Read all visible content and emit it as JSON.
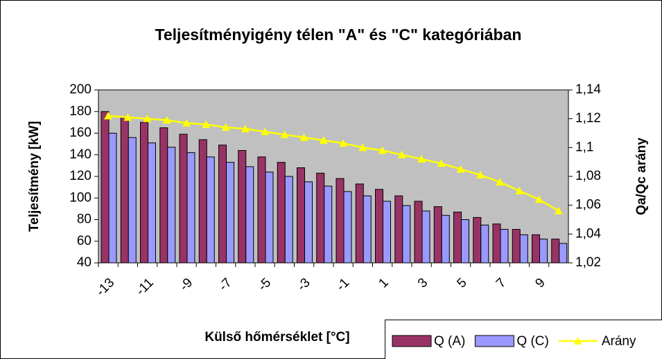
{
  "chart_data": {
    "type": "bar_line",
    "title": "Teljesítményigény télen \"A\" és \"C\" kategóriában",
    "x_label": "Külső hőmérséklet [°C]",
    "y_label": "Teljesítmény [kW]",
    "y2_label": "Qa/Qc arány",
    "categories": [
      "-13",
      null,
      "-11",
      null,
      "-9",
      null,
      "-7",
      null,
      "-5",
      null,
      "-3",
      null,
      "-1",
      null,
      "1",
      null,
      "3",
      null,
      "5",
      null,
      "7",
      null,
      "9",
      null
    ],
    "series": [
      {
        "name": "Q (A)",
        "type": "bar",
        "color": "#993366",
        "values": [
          180,
          175,
          170,
          165,
          159,
          154,
          149,
          144,
          138,
          133,
          128,
          123,
          118,
          113,
          108,
          102,
          97,
          92,
          87,
          82,
          76,
          71,
          66,
          62
        ]
      },
      {
        "name": "Q (C)",
        "type": "bar",
        "color": "#9999ff",
        "values": [
          160,
          156,
          151,
          147,
          142,
          138,
          133,
          129,
          124,
          120,
          115,
          111,
          106,
          102,
          97,
          93,
          88,
          84,
          80,
          75,
          71,
          66,
          62,
          58
        ]
      },
      {
        "name": "Arány",
        "type": "line",
        "axis": "y2",
        "color": "#ffff00",
        "values": [
          1.122,
          1.121,
          1.12,
          1.119,
          1.117,
          1.116,
          1.114,
          1.113,
          1.111,
          1.109,
          1.107,
          1.105,
          1.103,
          1.1,
          1.098,
          1.095,
          1.092,
          1.089,
          1.085,
          1.081,
          1.076,
          1.07,
          1.064,
          1.056
        ]
      }
    ],
    "ylim": [
      40,
      200
    ],
    "yticks": [
      40,
      60,
      80,
      100,
      120,
      140,
      160,
      180,
      200
    ],
    "y2lim": [
      1.02,
      1.14
    ],
    "y2ticks": [
      {
        "value": 1.02,
        "label": "1,02"
      },
      {
        "value": 1.04,
        "label": "1,04"
      },
      {
        "value": 1.06,
        "label": "1,06"
      },
      {
        "value": 1.08,
        "label": "1,08"
      },
      {
        "value": 1.1,
        "label": "1,1"
      },
      {
        "value": 1.12,
        "label": "1,12"
      },
      {
        "value": 1.14,
        "label": "1,14"
      }
    ],
    "plot_background": "#c0c0c0"
  }
}
